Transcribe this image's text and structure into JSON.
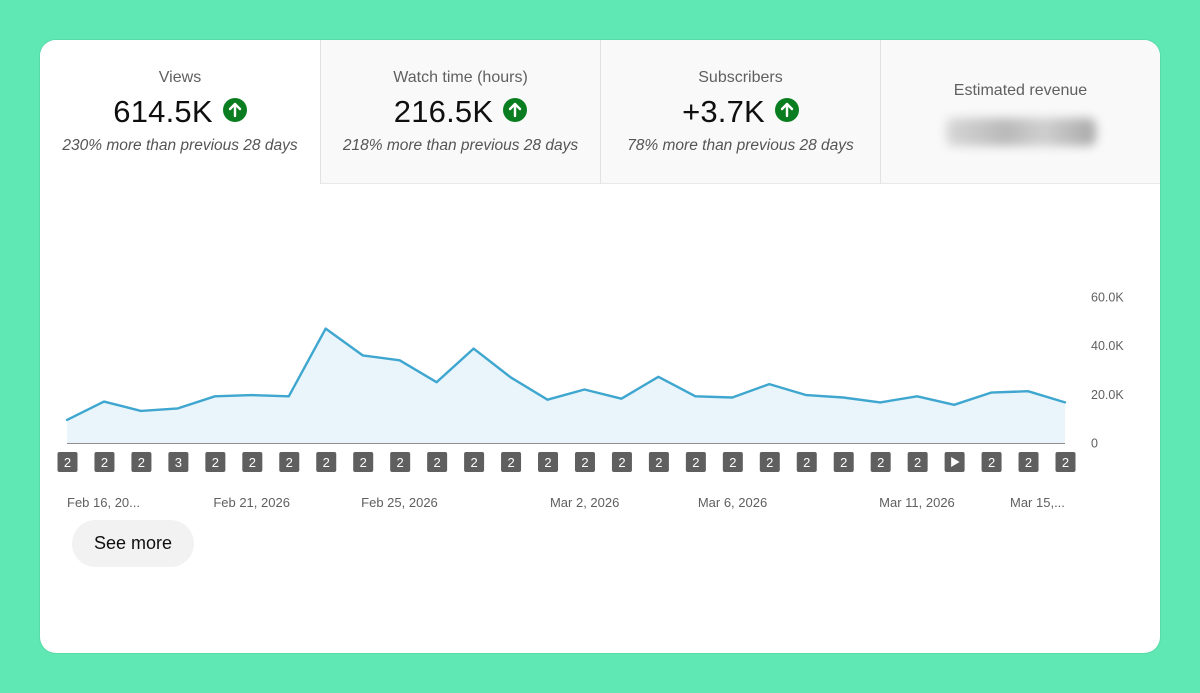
{
  "metrics": [
    {
      "label": "Views",
      "value": "614.5K",
      "comparison": "230% more than previous 28 days",
      "trend": "up-arrow-icon"
    },
    {
      "label": "Watch time (hours)",
      "value": "216.5K",
      "comparison": "218% more than previous 28 days",
      "trend": "up-arrow-icon"
    },
    {
      "label": "Subscribers",
      "value": "+3.7K",
      "comparison": "78% more than previous 28 days",
      "trend": "up-arrow-icon"
    },
    {
      "label": "Estimated revenue",
      "value_hidden": true
    }
  ],
  "chart_data": {
    "type": "area",
    "metric": "Views",
    "y_ticks": [
      "60.0K",
      "40.0K",
      "20.0K",
      "0"
    ],
    "ylim": [
      0,
      60000
    ],
    "values": [
      9500,
      17000,
      13200,
      14200,
      19200,
      19700,
      19200,
      47000,
      36000,
      34000,
      25000,
      38800,
      27000,
      17800,
      22000,
      18200,
      27200,
      19200,
      18700,
      24200,
      19700,
      18700,
      16700,
      19200,
      15700,
      20700,
      21300,
      16700
    ],
    "content_markers": [
      "2",
      "2",
      "2",
      "3",
      "2",
      "2",
      "2",
      "2",
      "2",
      "2",
      "2",
      "2",
      "2",
      "2",
      "2",
      "2",
      "2",
      "2",
      "2",
      "2",
      "2",
      "2",
      "2",
      "2",
      "play",
      "2",
      "2",
      "2"
    ],
    "x_labels": [
      {
        "text": "Feb 16, 20...",
        "index": 0
      },
      {
        "text": "Feb 21, 2026",
        "index": 5
      },
      {
        "text": "Feb 25, 2026",
        "index": 9
      },
      {
        "text": "Mar 2, 2026",
        "index": 14
      },
      {
        "text": "Mar 6, 2026",
        "index": 18
      },
      {
        "text": "Mar 11, 2026",
        "index": 23
      },
      {
        "text": "Mar 15,...",
        "index": 27
      }
    ]
  },
  "actions": {
    "see_more": "See more"
  },
  "colors": {
    "line": "#3ea6cf",
    "fill": "#e9f5fb",
    "marker": "#5f5f5f",
    "trend_up": "#0b7d21"
  }
}
